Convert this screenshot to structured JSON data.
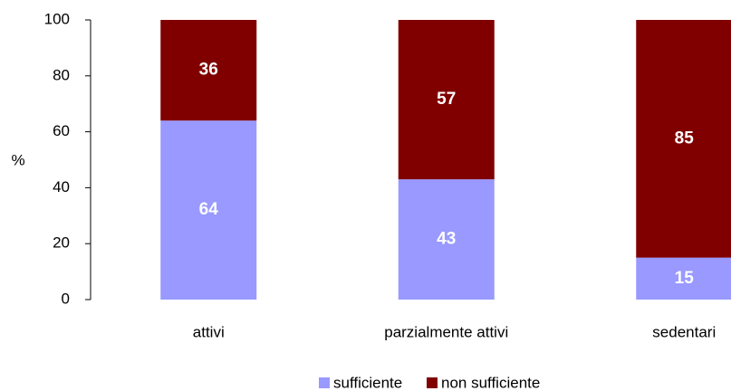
{
  "chart_data": {
    "type": "stacked_bar",
    "y_label": "%",
    "categories": [
      "attivi",
      "parzialmente attivi",
      "sedentari"
    ],
    "series": [
      {
        "name": "sufficiente",
        "color": "#9999ff",
        "values": [
          64,
          43,
          15
        ]
      },
      {
        "name": "non sufficiente",
        "color": "#800000",
        "values": [
          36,
          57,
          85
        ]
      }
    ],
    "ylim": [
      0,
      100
    ],
    "yticks": [
      0,
      20,
      40,
      60,
      80,
      100
    ],
    "grid": false,
    "legend": "bottom"
  }
}
